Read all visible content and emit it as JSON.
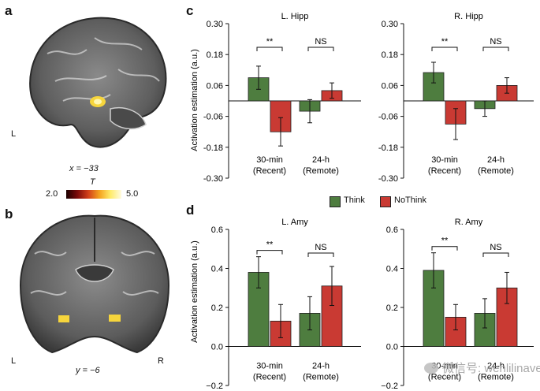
{
  "panels": {
    "a": {
      "letter": "a",
      "side_label": "L",
      "coord_label": "x = −33"
    },
    "b": {
      "letter": "b",
      "left_label": "L",
      "right_label": "R",
      "coord_label": "y = −6"
    },
    "c": {
      "letter": "c"
    },
    "d": {
      "letter": "d"
    }
  },
  "colorbar": {
    "title": "T",
    "min_label": "2.0",
    "max_label": "5.0"
  },
  "legend": {
    "think": "Think",
    "nothink": "NoThink"
  },
  "colors": {
    "think": "#4e7d3f",
    "nothink": "#c93a33",
    "brain_bg": "#5a5a5a",
    "activation": "#f6d53c"
  },
  "watermark": "微信号: wenlilinavetine",
  "chart_data": [
    {
      "type": "bar",
      "panel": "c",
      "title": "L. Hipp",
      "ylabel": "Activation estimation (a.u.)",
      "ylim": [
        -0.3,
        0.3
      ],
      "yticks": [
        "0.30",
        "0.18",
        "0.06",
        "-0.06",
        "-0.18",
        "-0.30"
      ],
      "groups": [
        {
          "label1": "30-min",
          "label2": "(Recent)",
          "sig": "**"
        },
        {
          "label1": "24-h",
          "label2": "(Remote)",
          "sig": "NS"
        }
      ],
      "series": [
        {
          "name": "Think",
          "values": [
            0.09,
            -0.04
          ],
          "errors": [
            0.045,
            0.045
          ]
        },
        {
          "name": "NoThink",
          "values": [
            -0.12,
            0.04
          ],
          "errors": [
            0.055,
            0.03
          ]
        }
      ]
    },
    {
      "type": "bar",
      "panel": "c",
      "title": "R. Hipp",
      "ylabel": "",
      "ylim": [
        -0.3,
        0.3
      ],
      "yticks": [
        "0.30",
        "0.18",
        "0.06",
        "-0.06",
        "-0.18",
        "-0.30"
      ],
      "groups": [
        {
          "label1": "30-min",
          "label2": "(Recent)",
          "sig": "**"
        },
        {
          "label1": "24-h",
          "label2": "(Remote)",
          "sig": "NS"
        }
      ],
      "series": [
        {
          "name": "Think",
          "values": [
            0.11,
            -0.03
          ],
          "errors": [
            0.04,
            0.03
          ]
        },
        {
          "name": "NoThink",
          "values": [
            -0.09,
            0.06
          ],
          "errors": [
            0.06,
            0.03
          ]
        }
      ]
    },
    {
      "type": "bar",
      "panel": "d",
      "title": "L. Amy",
      "ylabel": "Activation estimation (a.u.)",
      "ylim": [
        -0.2,
        0.6
      ],
      "yticks": [
        "0.6",
        "0.4",
        "0.2",
        "0.0",
        "−0.2"
      ],
      "groups": [
        {
          "label1": "30-min",
          "label2": "(Recent)",
          "sig": "**"
        },
        {
          "label1": "24-h",
          "label2": "(Remote)",
          "sig": "NS"
        }
      ],
      "series": [
        {
          "name": "Think",
          "values": [
            0.38,
            0.17
          ],
          "errors": [
            0.08,
            0.085
          ]
        },
        {
          "name": "NoThink",
          "values": [
            0.13,
            0.31
          ],
          "errors": [
            0.085,
            0.1
          ]
        }
      ]
    },
    {
      "type": "bar",
      "panel": "d",
      "title": "R. Amy",
      "ylabel": "",
      "ylim": [
        -0.2,
        0.6
      ],
      "yticks": [
        "0.6",
        "0.4",
        "0.2",
        "0.0",
        "−0.2"
      ],
      "groups": [
        {
          "label1": "30-min",
          "label2": "(Recent)",
          "sig": "**"
        },
        {
          "label1": "24-h",
          "label2": "(Remote)",
          "sig": "NS"
        }
      ],
      "series": [
        {
          "name": "Think",
          "values": [
            0.39,
            0.17
          ],
          "errors": [
            0.09,
            0.075
          ]
        },
        {
          "name": "NoThink",
          "values": [
            0.15,
            0.3
          ],
          "errors": [
            0.065,
            0.08
          ]
        }
      ]
    }
  ]
}
